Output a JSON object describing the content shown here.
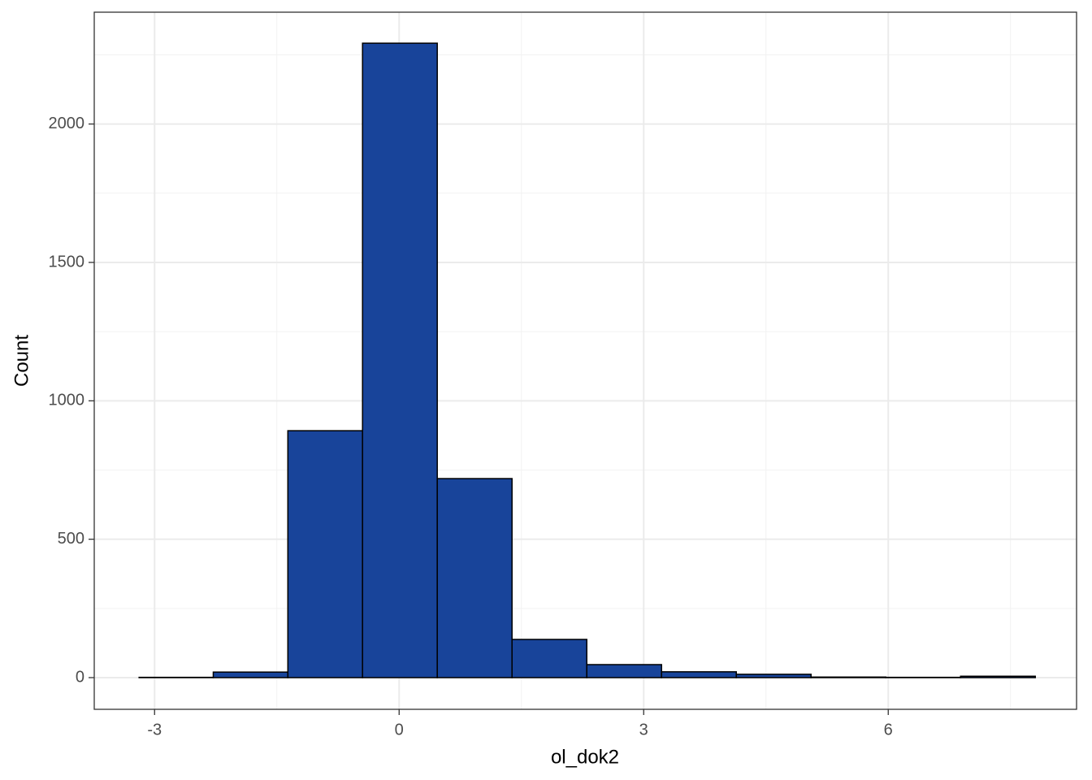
{
  "chart_data": {
    "type": "histogram",
    "x_label": "ol_dok2",
    "y_label": "Count",
    "bins": [
      -3.19,
      -2.28,
      -1.365,
      -0.449,
      0.468,
      1.385,
      2.302,
      3.219,
      4.136,
      5.053,
      5.97,
      6.887,
      7.804
    ],
    "values": [
      1,
      20,
      892,
      2292,
      719,
      138,
      47,
      21,
      12,
      2,
      1,
      5
    ],
    "color": "#18449a",
    "edge_color": "#000000",
    "xlim": [
      -3.74,
      8.31
    ],
    "xticks": [
      -3,
      0,
      3,
      6
    ],
    "x_minor_ticks": [
      -1.5,
      1.5,
      4.5,
      7.5
    ],
    "ylim": [
      -114.5,
      2404
    ],
    "yticks": [
      0,
      500,
      1000,
      1500,
      2000
    ],
    "y_minor_ticks": [
      250,
      750,
      1250,
      1750,
      2250
    ],
    "grid": true
  }
}
